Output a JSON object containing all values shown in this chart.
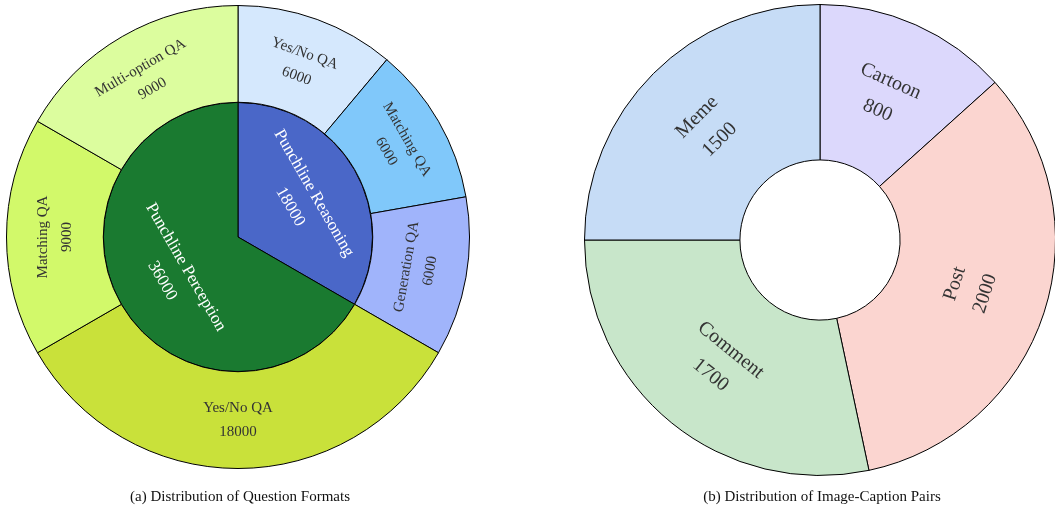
{
  "chart_data": [
    {
      "type": "pie",
      "data_labels": true,
      "categories": [
        "Punchline Reasoning",
        "Punchline Perception"
      ],
      "values": [
        18000,
        36000
      ],
      "colors": [
        "#4a67c8",
        "#1a7a30"
      ]
    },
    {
      "type": "donut",
      "title": "(a) Distribution of Question Formats",
      "data_labels": true,
      "categories": [
        "Yes/No QA",
        "Matching QA",
        "Generation QA",
        "Yes/No QA",
        "Matching QA",
        "Multi-option QA"
      ],
      "values": [
        6000,
        6000,
        6000,
        18000,
        9000,
        9000
      ],
      "colors": [
        "#d5e8fd",
        "#80c8fa",
        "#a0b4fb",
        "#c9e13a",
        "#d2f96a",
        "#dcfd9e"
      ]
    },
    {
      "type": "donut",
      "title": "(b) Distribution of Image-Caption Pairs",
      "data_labels": true,
      "categories": [
        "Cartoon",
        "Post",
        "Comment",
        "Meme"
      ],
      "values": [
        800,
        2000,
        1700,
        1500
      ],
      "colors": [
        "#dcd8fc",
        "#fbd5d0",
        "#c8e6ca",
        "#c6dcf6"
      ]
    }
  ]
}
